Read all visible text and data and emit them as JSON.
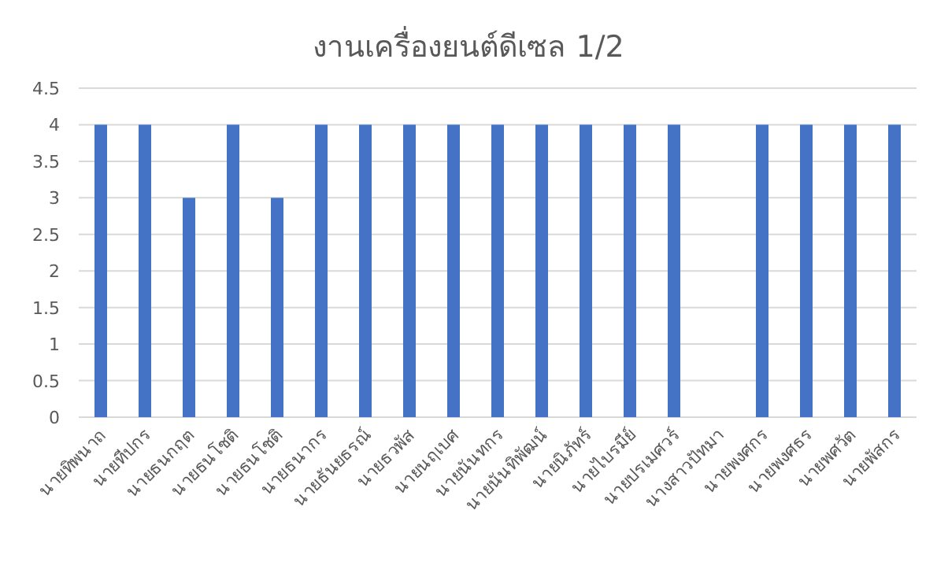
{
  "chart_data": {
    "type": "bar",
    "title": "งานเครื่องยนต์ดีเซล 1/2",
    "categories": [
      "นายทิพนาถ",
      "นายทีปกร",
      "นายธนกฤต",
      "นายธนโชติ",
      "นายธนโชติ",
      "นายธนากร",
      "นายธันยธรณ์",
      "นายธวพัส",
      "นายนฤเบศ",
      "นายนันทกร",
      "นายนันทิพัฒน์",
      "นายนิภัทร์",
      "นายไบรมีย์",
      "นายปรเมศวร์",
      "นางสาวปัทมา",
      "นายพงศกร",
      "นายพงศธร",
      "นายพศวัต",
      "นายพัสกร"
    ],
    "values": [
      4,
      4,
      3,
      4,
      3,
      4,
      4,
      4,
      4,
      4,
      4,
      4,
      4,
      4,
      0,
      4,
      4,
      4,
      4
    ],
    "color": "#4472c4",
    "ylim": [
      0,
      4.5
    ],
    "yticks": [
      0,
      0.5,
      1,
      1.5,
      2,
      2.5,
      3,
      3.5,
      4,
      4.5
    ],
    "grid": "y"
  }
}
